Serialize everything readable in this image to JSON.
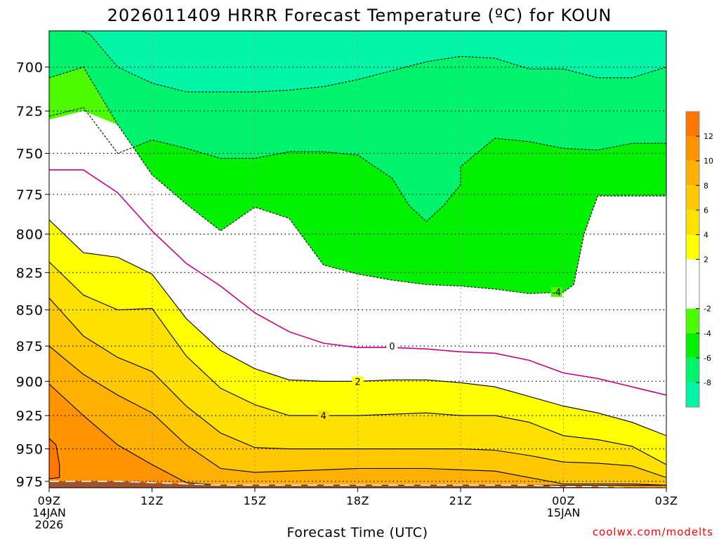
{
  "chart_data": {
    "type": "heatmap",
    "title": "2026011409 HRRR Forecast Temperature (ºC) for KOUN",
    "xlabel": "Forecast Time (UTC)",
    "ylabel": "",
    "credit": "coolwx.com/modelts",
    "y_log_scale": true,
    "y_inverted": true,
    "ylim": [
      980,
      680
    ],
    "x_hours_range": [
      0,
      18
    ],
    "grid": true,
    "x_ticks": [
      {
        "hour": 0,
        "label": "09Z",
        "sub": [
          "14JAN",
          "2026"
        ]
      },
      {
        "hour": 3,
        "label": "12Z",
        "sub": []
      },
      {
        "hour": 6,
        "label": "15Z",
        "sub": []
      },
      {
        "hour": 9,
        "label": "18Z",
        "sub": []
      },
      {
        "hour": 12,
        "label": "21Z",
        "sub": []
      },
      {
        "hour": 15,
        "label": "00Z",
        "sub": [
          "15JAN"
        ]
      },
      {
        "hour": 18,
        "label": "03Z",
        "sub": []
      }
    ],
    "y_ticks": [
      "700",
      "725",
      "750",
      "775",
      "800",
      "825",
      "850",
      "875",
      "900",
      "925",
      "950",
      "975"
    ],
    "colorbar": {
      "labels": [
        "12",
        "10",
        "8",
        "6",
        "4",
        "2",
        "-2",
        "-4",
        "-6",
        "-8"
      ],
      "bands": [
        {
          "from": 12,
          "to": 14,
          "color": "#ff7600"
        },
        {
          "from": 10,
          "to": 12,
          "color": "#ff9300"
        },
        {
          "from": 8,
          "to": 10,
          "color": "#ffb000"
        },
        {
          "from": 6,
          "to": 8,
          "color": "#ffc800"
        },
        {
          "from": 4,
          "to": 6,
          "color": "#ffe100"
        },
        {
          "from": 2,
          "to": 4,
          "color": "#ffff00"
        },
        {
          "from": -2,
          "to": 2,
          "color": "#ffffff"
        },
        {
          "from": -4,
          "to": -2,
          "color": "#4dfa00"
        },
        {
          "from": -6,
          "to": -4,
          "color": "#00f000"
        },
        {
          "from": -8,
          "to": -6,
          "color": "#00f36d"
        },
        {
          "from": -10,
          "to": -8,
          "color": "#00f6a5"
        }
      ]
    },
    "isotherms": [
      {
        "value": -8,
        "label": "",
        "line": "dashed",
        "points": [
          [
            0.95,
            680
          ],
          [
            1.2,
            682
          ],
          [
            2.0,
            700
          ],
          [
            3.0,
            709
          ],
          [
            4.0,
            714
          ],
          [
            5.0,
            714
          ],
          [
            6.0,
            714
          ],
          [
            7.0,
            713
          ],
          [
            8.0,
            711
          ],
          [
            9.0,
            707
          ],
          [
            10.0,
            702
          ],
          [
            11.0,
            697
          ],
          [
            12.0,
            694
          ],
          [
            13.0,
            695
          ],
          [
            14.0,
            701
          ],
          [
            15.0,
            701
          ],
          [
            16.0,
            706
          ],
          [
            17.0,
            706
          ],
          [
            18.0,
            700
          ]
        ]
      },
      {
        "value": -6,
        "label": "",
        "line": "dashed",
        "points": [
          [
            0.0,
            728
          ],
          [
            1.0,
            723
          ],
          [
            2.0,
            750
          ],
          [
            3.0,
            742
          ],
          [
            4.0,
            747
          ],
          [
            5.0,
            753
          ],
          [
            6.0,
            753
          ],
          [
            7.0,
            749
          ],
          [
            8.0,
            749
          ],
          [
            9.0,
            751
          ],
          [
            10.0,
            765
          ],
          [
            10.5,
            782
          ],
          [
            11.0,
            792
          ],
          [
            11.5,
            782
          ],
          [
            12.0,
            769
          ],
          [
            12.0,
            758
          ],
          [
            13.0,
            741
          ],
          [
            14.0,
            743
          ],
          [
            15.0,
            747
          ],
          [
            16.0,
            748
          ],
          [
            17.0,
            744
          ],
          [
            18.0,
            744
          ]
        ]
      },
      {
        "value": -4,
        "label": "-4",
        "label_at": [
          14.8,
          838
        ],
        "line": "dashed",
        "points": [
          [
            0.0,
            706
          ],
          [
            1.0,
            700
          ],
          [
            2.0,
            733
          ],
          [
            3.0,
            763
          ],
          [
            4.0,
            781
          ],
          [
            5.0,
            798
          ],
          [
            6.0,
            783
          ],
          [
            7.0,
            790
          ],
          [
            8.0,
            820
          ],
          [
            9.0,
            826
          ],
          [
            10.0,
            830
          ],
          [
            11.0,
            833
          ],
          [
            12.0,
            834
          ],
          [
            13.0,
            836
          ],
          [
            14.0,
            839
          ],
          [
            15.0,
            838
          ],
          [
            15.3,
            833
          ],
          [
            15.6,
            800
          ],
          [
            16.0,
            776
          ],
          [
            17.0,
            776
          ],
          [
            18.0,
            776
          ]
        ]
      },
      {
        "value": 0,
        "label": "0",
        "label_at": [
          10.0,
          875
        ],
        "line": "solid",
        "points": [
          [
            0.0,
            760
          ],
          [
            1.0,
            760
          ],
          [
            2.0,
            774
          ],
          [
            3.0,
            798
          ],
          [
            4.0,
            819
          ],
          [
            5.0,
            834
          ],
          [
            6.0,
            852
          ],
          [
            7.0,
            865
          ],
          [
            8.0,
            873
          ],
          [
            9.0,
            876
          ],
          [
            10.0,
            876
          ],
          [
            11.0,
            877
          ],
          [
            12.0,
            879
          ],
          [
            13.0,
            880
          ],
          [
            14.0,
            885
          ],
          [
            15.0,
            894
          ],
          [
            16.0,
            898
          ],
          [
            17.0,
            904
          ],
          [
            18.0,
            910
          ]
        ]
      },
      {
        "value": 2,
        "label": "2",
        "label_at": [
          9.0,
          900
        ],
        "line": "solid",
        "points": [
          [
            0.0,
            791
          ],
          [
            1.0,
            812
          ],
          [
            2.0,
            815
          ],
          [
            3.0,
            826
          ],
          [
            4.0,
            856
          ],
          [
            5.0,
            878
          ],
          [
            6.0,
            891
          ],
          [
            7.0,
            899
          ],
          [
            8.0,
            900
          ],
          [
            9.0,
            900
          ],
          [
            10.0,
            899
          ],
          [
            11.0,
            899
          ],
          [
            12.0,
            901
          ],
          [
            13.0,
            904
          ],
          [
            14.0,
            911
          ],
          [
            15.0,
            918
          ],
          [
            16.0,
            923
          ],
          [
            17.0,
            930
          ],
          [
            18.0,
            940
          ]
        ]
      },
      {
        "value": 4,
        "label": "4",
        "label_at": [
          8.0,
          925
        ],
        "line": "solid",
        "points": [
          [
            0.0,
            818
          ],
          [
            1.0,
            840
          ],
          [
            2.0,
            850
          ],
          [
            3.0,
            849
          ],
          [
            4.0,
            882
          ],
          [
            5.0,
            905
          ],
          [
            6.0,
            917
          ],
          [
            7.0,
            925
          ],
          [
            8.0,
            925
          ],
          [
            9.0,
            925
          ],
          [
            10.0,
            924
          ],
          [
            11.0,
            923
          ],
          [
            12.0,
            925
          ],
          [
            13.0,
            925
          ],
          [
            14.0,
            930
          ],
          [
            15.0,
            940
          ],
          [
            16.0,
            943
          ],
          [
            17.0,
            948
          ],
          [
            18.0,
            962
          ]
        ]
      },
      {
        "value": 6,
        "label": "",
        "line": "solid",
        "points": [
          [
            0.0,
            842
          ],
          [
            1.0,
            868
          ],
          [
            2.0,
            883
          ],
          [
            3.0,
            893
          ],
          [
            4.0,
            918
          ],
          [
            5.0,
            938
          ],
          [
            6.0,
            949
          ],
          [
            7.0,
            950
          ],
          [
            8.0,
            950
          ],
          [
            9.0,
            950
          ],
          [
            10.0,
            950
          ],
          [
            11.0,
            950
          ],
          [
            12.0,
            950
          ],
          [
            13.0,
            951
          ],
          [
            14.0,
            955
          ],
          [
            15.0,
            960
          ],
          [
            16.0,
            961
          ],
          [
            17.0,
            963
          ],
          [
            18.0,
            972
          ]
        ]
      },
      {
        "value": 8,
        "label": "",
        "line": "solid",
        "points": [
          [
            0.0,
            875
          ],
          [
            1.0,
            895
          ],
          [
            2.0,
            910
          ],
          [
            3.0,
            923
          ],
          [
            4.0,
            947
          ],
          [
            5.0,
            965
          ],
          [
            6.0,
            968
          ],
          [
            7.0,
            967
          ],
          [
            8.0,
            966
          ],
          [
            9.0,
            965
          ],
          [
            10.0,
            965
          ],
          [
            11.0,
            965
          ],
          [
            12.0,
            966
          ],
          [
            13.0,
            967
          ],
          [
            14.0,
            972
          ],
          [
            15.0,
            977
          ],
          [
            16.0,
            977
          ],
          [
            17.0,
            977
          ],
          [
            18.0,
            978
          ]
        ]
      },
      {
        "value": 10,
        "label": "",
        "line": "solid",
        "points": [
          [
            0.0,
            902
          ],
          [
            1.0,
            925
          ],
          [
            2.0,
            947
          ],
          [
            3.0,
            962
          ],
          [
            4.0,
            976
          ],
          [
            5.0,
            978
          ],
          [
            6.0,
            978
          ],
          [
            7.0,
            978
          ],
          [
            8.0,
            978
          ],
          [
            9.0,
            978
          ],
          [
            10.0,
            978
          ],
          [
            11.0,
            978
          ],
          [
            12.0,
            978
          ],
          [
            13.0,
            978
          ],
          [
            14.0,
            978
          ],
          [
            15.0,
            978
          ],
          [
            16.0,
            978
          ],
          [
            17.0,
            978
          ],
          [
            18.0,
            978
          ]
        ]
      },
      {
        "value": 12,
        "label": "",
        "line": "solid",
        "points": [
          [
            0.0,
            942
          ],
          [
            0.2,
            947
          ],
          [
            0.3,
            962
          ],
          [
            0.3,
            972
          ],
          [
            0.0,
            973
          ]
        ]
      }
    ],
    "terrain": {
      "color": "#a0522d",
      "surface": [
        [
          0.0,
          975
        ],
        [
          1.0,
          975
        ],
        [
          2.0,
          975
        ],
        [
          3.0,
          976
        ],
        [
          4.0,
          977
        ],
        [
          5.0,
          978
        ],
        [
          6.0,
          978
        ],
        [
          7.0,
          978
        ],
        [
          8.0,
          978
        ],
        [
          9.0,
          978
        ],
        [
          10.0,
          978
        ],
        [
          11.0,
          978
        ],
        [
          12.0,
          978
        ],
        [
          13.0,
          978
        ],
        [
          14.0,
          978
        ],
        [
          15.0,
          979
        ],
        [
          16.0,
          979
        ],
        [
          17.0,
          980
        ],
        [
          18.0,
          980
        ]
      ]
    }
  }
}
